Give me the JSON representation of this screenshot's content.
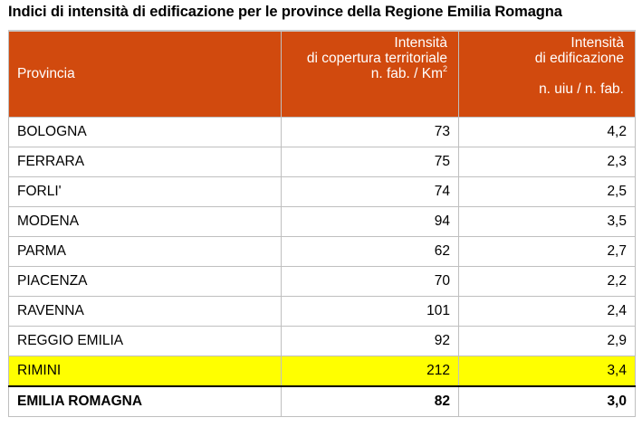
{
  "title": "Indici di intensità di edificazione per le province della Regione Emilia Romagna",
  "header": {
    "col1": "Provincia",
    "col2_line1": "Intensità",
    "col2_line2": "di copertura territoriale",
    "col2_line3": "n. fab. / Km",
    "col2_sup": "2",
    "col3_line1": "Intensità",
    "col3_line2": "di edificazione",
    "col3_line3": "n. uiu / n. fab."
  },
  "rows": [
    {
      "provincia": "BOLOGNA",
      "copertura": "73",
      "edificazione": "4,2"
    },
    {
      "provincia": "FERRARA",
      "copertura": "75",
      "edificazione": "2,3"
    },
    {
      "provincia": "FORLI'",
      "copertura": "74",
      "edificazione": "2,5"
    },
    {
      "provincia": "MODENA",
      "copertura": "94",
      "edificazione": "3,5"
    },
    {
      "provincia": "PARMA",
      "copertura": "62",
      "edificazione": "2,7"
    },
    {
      "provincia": "PIACENZA",
      "copertura": "70",
      "edificazione": "2,2"
    },
    {
      "provincia": "RAVENNA",
      "copertura": "101",
      "edificazione": "2,4"
    },
    {
      "provincia": "REGGIO EMILIA",
      "copertura": "92",
      "edificazione": "2,9"
    },
    {
      "provincia": "RIMINI",
      "copertura": "212",
      "edificazione": "3,4"
    }
  ],
  "total": {
    "provincia": "EMILIA ROMAGNA",
    "copertura": "82",
    "edificazione": "3,0"
  },
  "colors": {
    "header_bg": "#d14a0e",
    "highlight": "#ffff00"
  }
}
